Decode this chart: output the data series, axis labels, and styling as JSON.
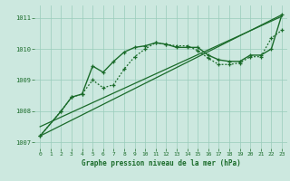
{
  "bg_color": "#cce8df",
  "grid_color": "#99ccbb",
  "line_color": "#1a6b2a",
  "xlabel": "Graphe pression niveau de la mer (hPa)",
  "xlim": [
    -0.5,
    23.5
  ],
  "ylim": [
    1006.8,
    1011.4
  ],
  "yticks": [
    1007,
    1008,
    1009,
    1010,
    1011
  ],
  "xticks": [
    0,
    1,
    2,
    3,
    4,
    5,
    6,
    7,
    8,
    9,
    10,
    11,
    12,
    13,
    14,
    15,
    16,
    17,
    18,
    19,
    20,
    21,
    22,
    23
  ],
  "trend1": {
    "x": [
      0,
      23
    ],
    "y": [
      1007.2,
      1011.1
    ]
  },
  "trend2": {
    "x": [
      0,
      23
    ],
    "y": [
      1007.5,
      1011.05
    ]
  },
  "line_solid": {
    "x": [
      0,
      2,
      3,
      4,
      5,
      6,
      7,
      8,
      9,
      10,
      11,
      12,
      13,
      14,
      15,
      16,
      17,
      18,
      19,
      20,
      21,
      22,
      23
    ],
    "y": [
      1007.2,
      1008.0,
      1008.45,
      1008.55,
      1009.45,
      1009.25,
      1009.6,
      1009.9,
      1010.05,
      1010.1,
      1010.2,
      1010.15,
      1010.05,
      1010.05,
      1010.05,
      1009.8,
      1009.65,
      1009.6,
      1009.6,
      1009.8,
      1009.8,
      1010.0,
      1011.1
    ]
  },
  "line_dotted": {
    "x": [
      0,
      2,
      3,
      4,
      5,
      6,
      7,
      8,
      9,
      10,
      11,
      12,
      13,
      14,
      15,
      16,
      17,
      18,
      19,
      20,
      21,
      22,
      23
    ],
    "y": [
      1007.2,
      1008.0,
      1008.45,
      1008.55,
      1009.0,
      1008.75,
      1008.85,
      1009.35,
      1009.75,
      1010.0,
      1010.2,
      1010.15,
      1010.1,
      1010.1,
      1009.95,
      1009.7,
      1009.5,
      1009.5,
      1009.55,
      1009.75,
      1009.75,
      1010.35,
      1010.6
    ]
  }
}
